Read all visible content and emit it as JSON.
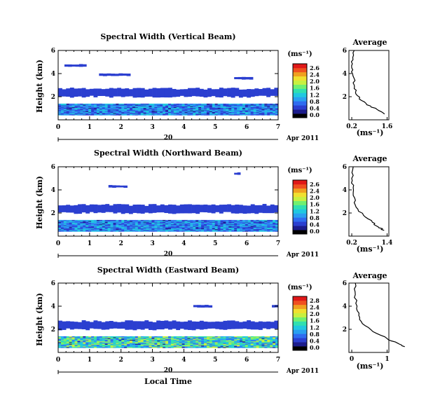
{
  "figure": {
    "xlabel": "Local Time",
    "date_label": "Apr 2011",
    "day_label": "20",
    "cbar_unit": "(ms⁻¹)",
    "avg_title": "Average",
    "avg_xlabel": "(ms⁻¹)"
  },
  "colors": {
    "scale": [
      "#000000",
      "#1c1c8c",
      "#2b3fd0",
      "#2f6cf0",
      "#2aa0f0",
      "#20c8e0",
      "#30e0b0",
      "#70f070",
      "#c8f040",
      "#f0e030",
      "#f0a020",
      "#f05020",
      "#e01818"
    ]
  },
  "chart_data": [
    {
      "type": "heatmap",
      "title": "Spectral Width (Vertical Beam)",
      "ylabel": "Height (km)",
      "xlim": [
        0,
        7
      ],
      "ylim": [
        0,
        6
      ],
      "xticks": [
        "0",
        "1",
        "2",
        "3",
        "4",
        "5",
        "6",
        "7"
      ],
      "yticks": [
        "6",
        "4",
        "2"
      ],
      "cbar_ticks": [
        "2.6",
        "2.4",
        "2.0",
        "1.6",
        "1.2",
        "0.8",
        "0.4",
        "0.0"
      ],
      "echo_cells": [
        {
          "x0": 0.0,
          "x1": 7.0,
          "y0": 0.4,
          "y1": 1.4,
          "level": "turbulent"
        },
        {
          "x0": 0.0,
          "x1": 7.0,
          "y0": 2.0,
          "y1": 2.7,
          "level": 0.2
        },
        {
          "x0": 0.2,
          "x1": 0.9,
          "y0": 4.6,
          "y1": 4.8,
          "level": 0.2
        },
        {
          "x0": 1.3,
          "x1": 2.3,
          "y0": 3.8,
          "y1": 4.0,
          "level": 0.2
        },
        {
          "x0": 5.6,
          "x1": 6.2,
          "y0": 3.5,
          "y1": 3.7,
          "level": 0.2
        }
      ],
      "average": {
        "xticks": [
          "0.2",
          "1.6"
        ],
        "yticks": [
          "6",
          "4",
          "2"
        ],
        "profile": [
          [
            0.3,
            6.0
          ],
          [
            0.25,
            5.2
          ],
          [
            0.2,
            4.5
          ],
          [
            0.25,
            3.8
          ],
          [
            0.3,
            3.0
          ],
          [
            0.35,
            2.4
          ],
          [
            0.5,
            1.8
          ],
          [
            0.8,
            1.3
          ],
          [
            1.2,
            0.9
          ],
          [
            1.5,
            0.5
          ]
        ]
      }
    },
    {
      "type": "heatmap",
      "title": "Spectral Width (Northward Beam)",
      "ylabel": "Height (km)",
      "xlim": [
        0,
        7
      ],
      "ylim": [
        0,
        6
      ],
      "xticks": [
        "0",
        "1",
        "2",
        "3",
        "4",
        "5",
        "6",
        "7"
      ],
      "yticks": [
        "6",
        "4",
        "2"
      ],
      "cbar_ticks": [
        "2.6",
        "2.4",
        "2.0",
        "1.6",
        "1.2",
        "0.8",
        "0.4",
        "0.0"
      ],
      "echo_cells": [
        {
          "x0": 0.0,
          "x1": 7.0,
          "y0": 0.4,
          "y1": 1.4,
          "level": "turbulent"
        },
        {
          "x0": 0.0,
          "x1": 7.0,
          "y0": 2.0,
          "y1": 2.7,
          "level": 0.2
        },
        {
          "x0": 1.6,
          "x1": 2.2,
          "y0": 4.2,
          "y1": 4.4,
          "level": 0.2
        },
        {
          "x0": 5.6,
          "x1": 5.8,
          "y0": 5.3,
          "y1": 5.5,
          "level": 0.2
        }
      ],
      "average": {
        "xticks": [
          "0.2",
          "1.4"
        ],
        "yticks": [
          "6",
          "4",
          "2"
        ],
        "profile": [
          [
            0.25,
            6.0
          ],
          [
            0.2,
            5.0
          ],
          [
            0.25,
            4.2
          ],
          [
            0.3,
            3.3
          ],
          [
            0.35,
            2.5
          ],
          [
            0.6,
            1.8
          ],
          [
            0.9,
            1.2
          ],
          [
            1.1,
            0.8
          ],
          [
            1.3,
            0.5
          ]
        ]
      }
    },
    {
      "type": "heatmap",
      "title": "Spectral Width (Eastward Beam)",
      "ylabel": "Height (km)",
      "xlim": [
        0,
        7
      ],
      "ylim": [
        0,
        6
      ],
      "xticks": [
        "0",
        "1",
        "2",
        "3",
        "4",
        "5",
        "6",
        "7"
      ],
      "yticks": [
        "6",
        "4",
        "2"
      ],
      "cbar_ticks": [
        "2.8",
        "2.4",
        "2.0",
        "1.6",
        "1.2",
        "0.8",
        "0.4",
        "0.0"
      ],
      "echo_cells": [
        {
          "x0": 0.0,
          "x1": 7.0,
          "y0": 0.4,
          "y1": 1.4,
          "level": "turbulent"
        },
        {
          "x0": 0.0,
          "x1": 7.0,
          "y0": 2.0,
          "y1": 2.7,
          "level": 0.2
        },
        {
          "x0": 4.3,
          "x1": 4.9,
          "y0": 3.9,
          "y1": 4.1,
          "level": 0.2
        },
        {
          "x0": 6.8,
          "x1": 7.0,
          "y0": 3.9,
          "y1": 4.1,
          "level": 0.2
        }
      ],
      "average": {
        "xticks": [
          "0",
          "1"
        ],
        "yticks": [
          "6",
          "4",
          "2"
        ],
        "profile": [
          [
            0.1,
            6.0
          ],
          [
            0.1,
            5.0
          ],
          [
            0.15,
            4.0
          ],
          [
            0.2,
            3.2
          ],
          [
            0.3,
            2.5
          ],
          [
            0.6,
            1.8
          ],
          [
            1.0,
            1.2
          ],
          [
            1.3,
            0.8
          ],
          [
            1.5,
            0.5
          ]
        ]
      }
    }
  ]
}
